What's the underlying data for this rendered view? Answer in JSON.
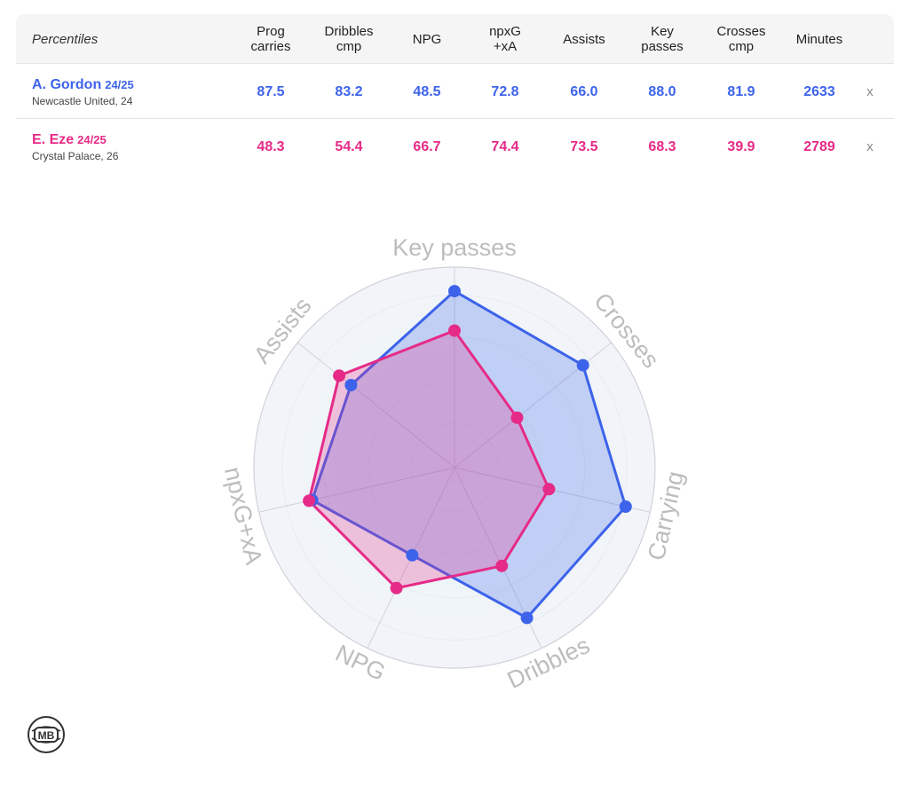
{
  "table": {
    "header_label": "Percentiles",
    "columns": [
      "Prog\ncarries",
      "Dribbles\ncmp",
      "NPG",
      "npxG\n+xA",
      "Assists",
      "Key\npasses",
      "Crosses\ncmp",
      "Minutes"
    ],
    "remove_label": "x",
    "players": [
      {
        "name": "A. Gordon",
        "season": "24/25",
        "club": "Newcastle United, 24",
        "color": "#3d63ea",
        "values": [
          "87.5",
          "83.2",
          "48.5",
          "72.8",
          "66.0",
          "88.0",
          "81.9",
          "2633"
        ]
      },
      {
        "name": "E. Eze",
        "season": "24/25",
        "club": "Crystal Palace, 26",
        "color": "#e62a87",
        "values": [
          "48.3",
          "54.4",
          "66.7",
          "74.4",
          "73.5",
          "68.3",
          "39.9",
          "2789"
        ]
      }
    ]
  },
  "chart_data": {
    "type": "radar",
    "axes": [
      "Key passes",
      "Crosses",
      "Carrying",
      "Dribbles",
      "NPG",
      "npxG+xA",
      "Assists"
    ],
    "range": [
      0,
      100
    ],
    "series": [
      {
        "name": "A. Gordon",
        "color": "#3d63ea",
        "values": [
          88.0,
          81.9,
          87.5,
          83.2,
          48.5,
          72.8,
          66.0
        ]
      },
      {
        "name": "E. Eze",
        "color": "#e62a87",
        "values": [
          68.3,
          39.9,
          48.3,
          54.4,
          66.7,
          74.4,
          73.5
        ]
      }
    ]
  },
  "logo": {
    "text": "MB"
  }
}
